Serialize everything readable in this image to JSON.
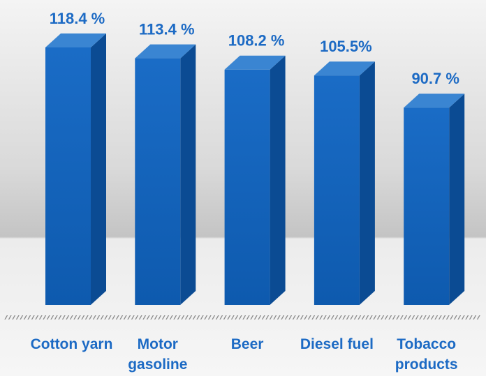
{
  "chart_data": {
    "type": "bar3d",
    "categories": [
      "Cotton yarn",
      "Motor gasoline",
      "Beer",
      "Diesel fuel",
      "Tobacco products"
    ],
    "values": [
      118.4,
      113.4,
      108.2,
      105.5,
      90.7
    ],
    "value_labels": [
      "118.4 %",
      "113.4 %",
      "108.2 %",
      "105.5%",
      "90.7 %"
    ],
    "color": "#1565c0"
  }
}
